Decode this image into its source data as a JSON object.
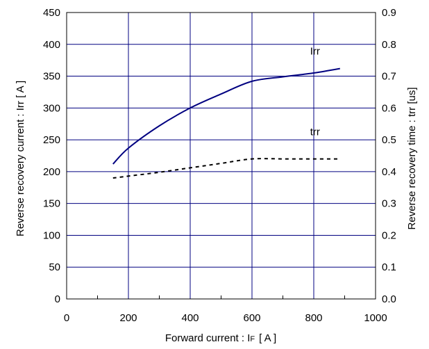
{
  "chart_data": {
    "type": "line",
    "xlabel": "Forward current : I",
    "xlabel_sub": "F",
    "xlabel_unit": "[ A ]",
    "ylabel_left": "Reverse recovery current : Irr [ A ]",
    "ylabel_right": "Reverse recovery time : trr [us]",
    "xlim": [
      0,
      1000
    ],
    "ylim_left": [
      0,
      450
    ],
    "ylim_right": [
      0,
      0.9
    ],
    "x_ticks": [
      "0",
      "200",
      "400",
      "600",
      "800",
      "1000"
    ],
    "y_left_ticks": [
      "0",
      "50",
      "100",
      "150",
      "200",
      "250",
      "300",
      "350",
      "400",
      "450"
    ],
    "y_right_ticks": [
      "0.0",
      "0.1",
      "0.2",
      "0.3",
      "0.4",
      "0.5",
      "0.6",
      "0.7",
      "0.8",
      "0.9"
    ],
    "grid": true,
    "series": [
      {
        "name": "Irr",
        "axis": "left",
        "style": "solid",
        "color": "#000080",
        "x": [
          150,
          200,
          300,
          400,
          500,
          600,
          700,
          800,
          885
        ],
        "y": [
          212,
          237,
          272,
          300,
          322,
          342,
          349,
          355,
          362
        ]
      },
      {
        "name": "trr",
        "axis": "right",
        "style": "dashed",
        "color": "#000000",
        "x": [
          150,
          200,
          300,
          400,
          500,
          600,
          700,
          800,
          885
        ],
        "y": [
          0.38,
          0.386,
          0.398,
          0.412,
          0.426,
          0.44,
          0.44,
          0.44,
          0.44
        ]
      }
    ]
  }
}
